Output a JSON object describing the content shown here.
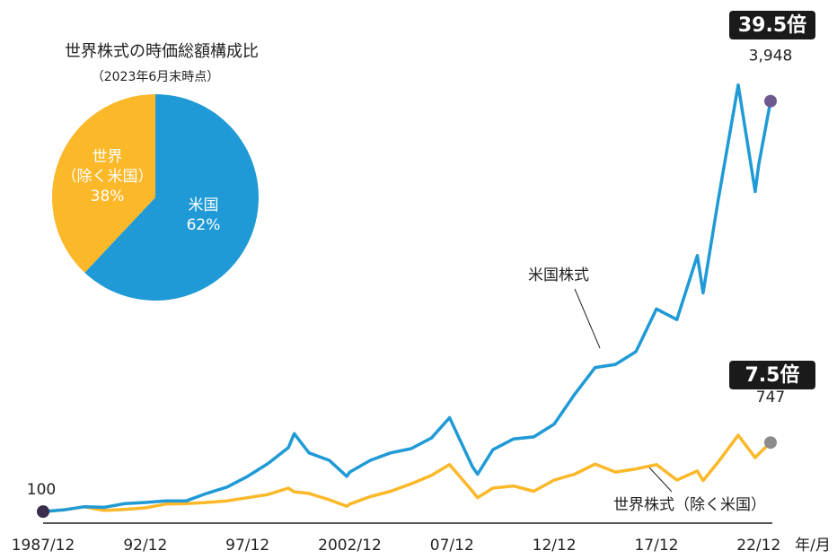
{
  "chart_data": [
    {
      "type": "line",
      "x": [
        1987.92,
        1988.92,
        1989.92,
        1990.92,
        1991.92,
        1992.92,
        1993.92,
        1994.92,
        1995.92,
        1996.92,
        1997.92,
        1998.92,
        1999.92,
        2000.2,
        2000.92,
        2001.92,
        2002.77,
        2002.92,
        2003.92,
        2004.92,
        2005.92,
        2006.92,
        2007.8,
        2008.92,
        2009.17,
        2009.92,
        2010.92,
        2011.92,
        2012.92,
        2013.92,
        2014.92,
        2015.92,
        2016.92,
        2017.92,
        2018.92,
        2019.92,
        2020.2,
        2020.92,
        2021.92,
        2022.75,
        2022.92,
        2023.5
      ],
      "xlim": [
        1987.92,
        2023.5
      ],
      "xticks": [
        {
          "value": 1987.92,
          "label": "1987/12"
        },
        {
          "value": 1992.92,
          "label": "92/12"
        },
        {
          "value": 1997.92,
          "label": "97/12"
        },
        {
          "value": 2002.92,
          "label": "2002/12"
        },
        {
          "value": 2007.92,
          "label": "07/12"
        },
        {
          "value": 2012.92,
          "label": "12/12"
        },
        {
          "value": 2017.92,
          "label": "17/12"
        },
        {
          "value": 2022.92,
          "label": "22/12"
        }
      ],
      "x_label": "年/月",
      "ylim": [
        0,
        4400
      ],
      "series": [
        {
          "name": "米国株式",
          "color": "#1f9ad6",
          "end_marker_color": "#6e5a8e",
          "values": [
            100,
            115,
            145,
            140,
            175,
            185,
            200,
            200,
            270,
            330,
            430,
            550,
            700,
            830,
            650,
            580,
            430,
            470,
            580,
            650,
            690,
            790,
            980,
            520,
            450,
            680,
            780,
            800,
            920,
            1200,
            1450,
            1480,
            1600,
            2000,
            1900,
            2500,
            2150,
            3000,
            4100,
            3100,
            3350,
            3948
          ],
          "value_labels": [
            null,
            null,
            null,
            null,
            null,
            null,
            null,
            null,
            null,
            null,
            null,
            null,
            null,
            null,
            null,
            null,
            null,
            null,
            null,
            null,
            null,
            null,
            null,
            null,
            null,
            null,
            null,
            null,
            null,
            null,
            null,
            null,
            null,
            null,
            null,
            null,
            null,
            null,
            null,
            null,
            null,
            "3,948"
          ]
        },
        {
          "name": "世界株式（除く米国）",
          "color": "#fbb829",
          "end_marker_color": "#8c8c8c",
          "values": [
            100,
            115,
            145,
            110,
            120,
            135,
            170,
            175,
            185,
            200,
            230,
            260,
            320,
            285,
            270,
            210,
            150,
            170,
            240,
            290,
            360,
            440,
            540,
            290,
            230,
            320,
            340,
            290,
            395,
            450,
            545,
            470,
            500,
            540,
            395,
            480,
            390,
            560,
            815,
            605,
            640,
            747
          ],
          "value_labels": [
            null,
            null,
            null,
            null,
            null,
            null,
            null,
            null,
            null,
            null,
            null,
            null,
            null,
            null,
            null,
            null,
            null,
            null,
            null,
            null,
            null,
            null,
            null,
            null,
            null,
            null,
            null,
            null,
            null,
            null,
            null,
            null,
            null,
            null,
            null,
            null,
            null,
            null,
            null,
            null,
            null,
            null
          ]
        }
      ],
      "start_marker_color": "#3a2e4d",
      "annotations": [
        "39.5倍",
        "7.5倍"
      ]
    },
    {
      "type": "pie",
      "title": "世界株式の時価総額構成比",
      "subtitle": "（2023年6月末時点）",
      "categories": [
        "米国",
        "世界（除く米国）"
      ],
      "values": [
        62,
        38
      ],
      "value_labels": [
        "62%",
        "38%"
      ],
      "colors": [
        "#1f9ad6",
        "#fbb829"
      ]
    }
  ]
}
